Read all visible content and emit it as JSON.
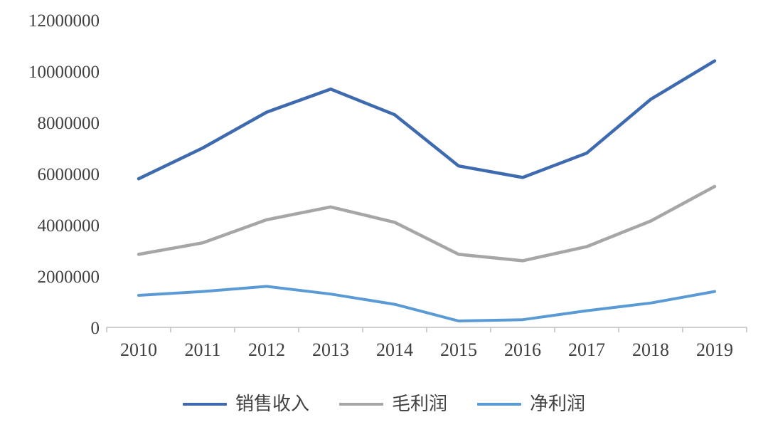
{
  "chart_data": {
    "type": "line",
    "title": "",
    "categories": [
      "2010",
      "2011",
      "2012",
      "2013",
      "2014",
      "2015",
      "2016",
      "2017",
      "2018",
      "2019"
    ],
    "series": [
      {
        "name": "销售收入",
        "color": "#3E6AB0",
        "stroke_width": 4.5,
        "values": [
          5800000,
          7000000,
          8400000,
          9300000,
          8300000,
          6300000,
          5850000,
          6800000,
          8900000,
          10400000
        ]
      },
      {
        "name": "毛利润",
        "color": "#A6A6A6",
        "stroke_width": 4.5,
        "values": [
          2850000,
          3300000,
          4200000,
          4700000,
          4100000,
          2850000,
          2600000,
          3150000,
          4150000,
          5500000
        ]
      },
      {
        "name": "净利润",
        "color": "#5B9BD5",
        "stroke_width": 4,
        "values": [
          1250000,
          1400000,
          1600000,
          1300000,
          900000,
          250000,
          300000,
          650000,
          950000,
          1400000
        ]
      }
    ],
    "xlabel": "",
    "ylabel": "",
    "ylim": [
      0,
      12000000
    ],
    "y_ticks": [
      0,
      2000000,
      4000000,
      6000000,
      8000000,
      10000000,
      12000000
    ],
    "grid": false,
    "legend_position": "bottom"
  },
  "colors": {
    "axis": "#BFBFBF",
    "text": "#404040",
    "background": "#FFFFFF"
  }
}
